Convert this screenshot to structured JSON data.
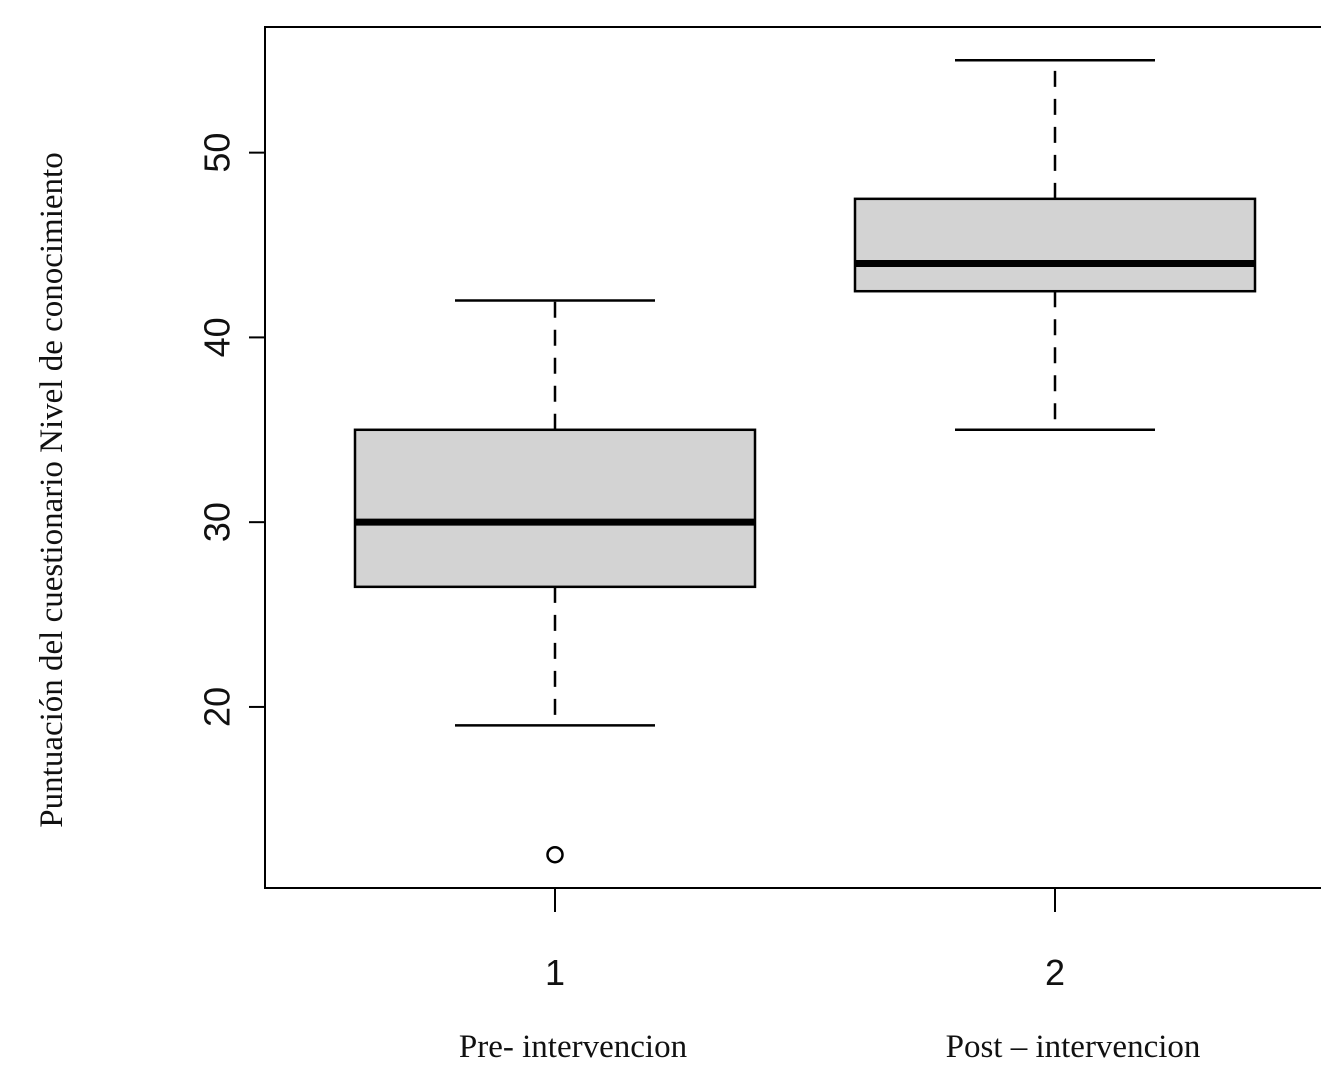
{
  "chart_data": {
    "type": "box",
    "title": "",
    "ylabel": "Puntuación del cuestionario Nivel de conocimiento",
    "xlabel": "",
    "ylim": [
      10.2,
      56.8
    ],
    "yticks": [
      "20",
      "30",
      "40",
      "50"
    ],
    "ytick_values": [
      20,
      30,
      40,
      50
    ],
    "grid": false,
    "box_fill": "#d3d3d3",
    "line_color": "#000000",
    "groups": [
      {
        "tick": "1",
        "category_label": "Pre- intervencion",
        "whisker_low": 19,
        "q1": 26.5,
        "median": 30,
        "q3": 35,
        "whisker_high": 42,
        "outliers": [
          12
        ]
      },
      {
        "tick": "2",
        "category_label": "Post – intervencion",
        "whisker_low": 35,
        "q1": 42.5,
        "median": 44,
        "q3": 47.5,
        "whisker_high": 55,
        "outliers": []
      }
    ]
  }
}
